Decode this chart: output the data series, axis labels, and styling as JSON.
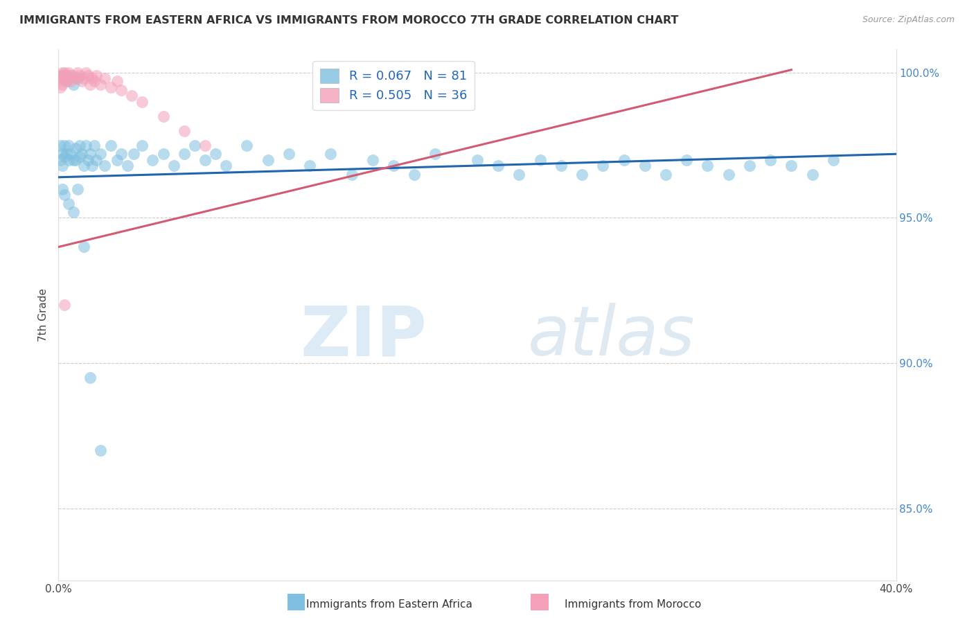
{
  "title": "IMMIGRANTS FROM EASTERN AFRICA VS IMMIGRANTS FROM MOROCCO 7TH GRADE CORRELATION CHART",
  "source": "Source: ZipAtlas.com",
  "ylabel": "7th Grade",
  "y_tick_labels_right": [
    "85.0%",
    "90.0%",
    "95.0%",
    "100.0%"
  ],
  "y_tick_vals": [
    0.85,
    0.9,
    0.95,
    1.0
  ],
  "xlim": [
    0.0,
    0.4
  ],
  "ylim": [
    0.825,
    1.008
  ],
  "blue_R": 0.067,
  "blue_N": 81,
  "pink_R": 0.505,
  "pink_N": 36,
  "blue_color": "#7fbfdf",
  "pink_color": "#f4a0b8",
  "blue_line_color": "#2166ac",
  "pink_line_color": "#d45a70",
  "legend_label_blue": "Immigrants from Eastern Africa",
  "legend_label_pink": "Immigrants from Morocco",
  "blue_line_x0": 0.0,
  "blue_line_y0": 0.964,
  "blue_line_x1": 0.4,
  "blue_line_y1": 0.972,
  "pink_line_x0": 0.0,
  "pink_line_y0": 0.94,
  "pink_line_x1": 0.35,
  "pink_line_y1": 1.001,
  "blue_pts_x": [
    0.001,
    0.001,
    0.002,
    0.002,
    0.002,
    0.003,
    0.003,
    0.003,
    0.004,
    0.004,
    0.005,
    0.005,
    0.006,
    0.006,
    0.007,
    0.007,
    0.008,
    0.008,
    0.009,
    0.01,
    0.01,
    0.011,
    0.012,
    0.013,
    0.014,
    0.015,
    0.016,
    0.017,
    0.018,
    0.02,
    0.022,
    0.025,
    0.028,
    0.03,
    0.033,
    0.036,
    0.04,
    0.045,
    0.05,
    0.055,
    0.06,
    0.065,
    0.07,
    0.075,
    0.08,
    0.09,
    0.1,
    0.11,
    0.12,
    0.13,
    0.14,
    0.15,
    0.16,
    0.17,
    0.18,
    0.2,
    0.21,
    0.22,
    0.23,
    0.24,
    0.25,
    0.26,
    0.27,
    0.28,
    0.29,
    0.3,
    0.31,
    0.32,
    0.33,
    0.34,
    0.35,
    0.36,
    0.37,
    0.002,
    0.003,
    0.005,
    0.007,
    0.009,
    0.012,
    0.015,
    0.02
  ],
  "blue_pts_y": [
    0.975,
    0.97,
    0.972,
    0.968,
    0.999,
    0.975,
    0.971,
    0.998,
    0.972,
    0.997,
    0.975,
    0.97,
    0.972,
    0.999,
    0.97,
    0.996,
    0.974,
    0.97,
    0.998,
    0.975,
    0.971,
    0.972,
    0.968,
    0.975,
    0.97,
    0.972,
    0.968,
    0.975,
    0.97,
    0.972,
    0.968,
    0.975,
    0.97,
    0.972,
    0.968,
    0.972,
    0.975,
    0.97,
    0.972,
    0.968,
    0.972,
    0.975,
    0.97,
    0.972,
    0.968,
    0.975,
    0.97,
    0.972,
    0.968,
    0.972,
    0.965,
    0.97,
    0.968,
    0.965,
    0.972,
    0.97,
    0.968,
    0.965,
    0.97,
    0.968,
    0.965,
    0.968,
    0.97,
    0.968,
    0.965,
    0.97,
    0.968,
    0.965,
    0.968,
    0.97,
    0.968,
    0.965,
    0.97,
    0.96,
    0.958,
    0.955,
    0.952,
    0.96,
    0.94,
    0.895,
    0.87
  ],
  "pink_pts_x": [
    0.001,
    0.001,
    0.001,
    0.002,
    0.002,
    0.002,
    0.003,
    0.003,
    0.004,
    0.004,
    0.005,
    0.005,
    0.006,
    0.007,
    0.008,
    0.009,
    0.01,
    0.011,
    0.012,
    0.013,
    0.014,
    0.015,
    0.016,
    0.017,
    0.018,
    0.02,
    0.022,
    0.025,
    0.028,
    0.03,
    0.035,
    0.04,
    0.05,
    0.06,
    0.07,
    0.003
  ],
  "pink_pts_y": [
    0.999,
    0.997,
    0.995,
    1.0,
    0.998,
    0.996,
    1.0,
    0.998,
    0.999,
    0.997,
    0.998,
    1.0,
    0.997,
    0.999,
    0.998,
    1.0,
    0.999,
    0.997,
    0.998,
    1.0,
    0.999,
    0.996,
    0.998,
    0.997,
    0.999,
    0.996,
    0.998,
    0.995,
    0.997,
    0.994,
    0.992,
    0.99,
    0.985,
    0.98,
    0.975,
    0.92
  ]
}
